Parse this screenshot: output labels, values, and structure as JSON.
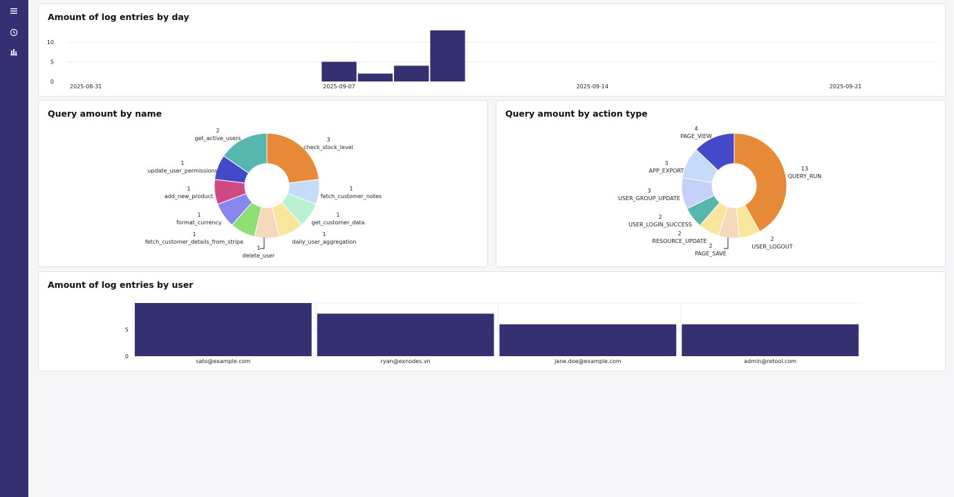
{
  "sidebar": {
    "items": [
      {
        "icon": "menu-icon"
      },
      {
        "icon": "clock-icon"
      },
      {
        "icon": "bar-chart-icon"
      }
    ]
  },
  "colors": {
    "sidebar": "#343071",
    "bar": "#343071"
  },
  "charts": {
    "by_day": {
      "title": "Amount of log entries by day"
    },
    "by_name": {
      "title": "Query amount by name"
    },
    "by_action": {
      "title": "Query amount by action type"
    },
    "by_user": {
      "title": "Amount of log entries by user"
    }
  },
  "chart_data": [
    {
      "type": "bar",
      "title": "Amount of log entries by day",
      "x_tick_labels": [
        "2025-08-31",
        "2025-09-07",
        "2025-09-14",
        "2025-09-21"
      ],
      "y_ticks": [
        0,
        5,
        10
      ],
      "ylim": [
        0,
        13
      ],
      "x": [
        "2025-09-07",
        "2025-09-08",
        "2025-09-09",
        "2025-09-10"
      ],
      "values": [
        5,
        2,
        4,
        13
      ],
      "grid": true,
      "color": "#343071"
    },
    {
      "type": "pie",
      "title": "Query amount by name",
      "donut": true,
      "labels": [
        "check_stock_level",
        "fetch_customer_notes",
        "get_customer_data",
        "daily_user_aggregation",
        "delete_user",
        "fetch_customer_details_from_stripe",
        "format_currency",
        "add_new_product",
        "update_user_permissions",
        "get_active_users"
      ],
      "values": [
        3,
        1,
        1,
        1,
        1,
        1,
        1,
        1,
        1,
        2
      ],
      "colors": [
        "#e68a37",
        "#c6dbf9",
        "#b9f1d2",
        "#f9e59b",
        "#f6d8bd",
        "#8ede74",
        "#8787ef",
        "#cf4a82",
        "#4349c8",
        "#57b6ae"
      ]
    },
    {
      "type": "pie",
      "title": "Query amount by action type",
      "donut": true,
      "labels": [
        "QUERY_RUN",
        "USER_LOGOUT",
        "PAGE_SAVE",
        "RESOURCE_UPDATE",
        "USER_LOGIN_SUCCESS",
        "USER_GROUP_UPDATE",
        "APP_EXPORT",
        "PAGE_VIEW"
      ],
      "values": [
        13,
        2,
        2,
        2,
        2,
        3,
        3,
        4
      ],
      "colors": [
        "#e68a37",
        "#f9e59b",
        "#f6d8bd",
        "#f9e59b",
        "#57b6ae",
        "#c7d0f8",
        "#c6dbf9",
        "#4349c8"
      ]
    },
    {
      "type": "bar",
      "title": "Amount of log entries by user",
      "categories": [
        "sato@example.com",
        "ryan@exnodes.vn",
        "jane.doe@example.com",
        "admin@retool.com"
      ],
      "values": [
        10,
        8,
        6,
        6
      ],
      "y_ticks": [
        0,
        5
      ],
      "ylim": [
        0,
        10
      ],
      "grid": true,
      "color": "#343071"
    }
  ]
}
